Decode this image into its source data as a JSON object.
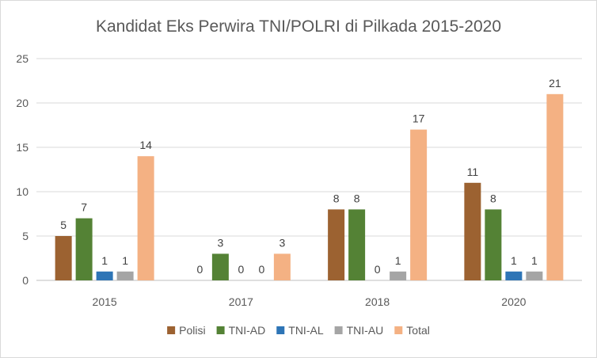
{
  "chart_data": {
    "type": "bar",
    "title": "Kandidat Eks Perwira TNI/POLRI di Pilkada 2015-2020",
    "xlabel": "",
    "ylabel": "",
    "ylim": [
      0,
      25
    ],
    "yticks": [
      0,
      5,
      10,
      15,
      20,
      25
    ],
    "categories": [
      "2015",
      "2017",
      "2018",
      "2020"
    ],
    "grid": true,
    "legend_position": "bottom",
    "series": [
      {
        "name": "Polisi",
        "color": "#9c6231",
        "values": [
          5,
          0,
          8,
          11
        ]
      },
      {
        "name": "TNI-AD",
        "color": "#548235",
        "values": [
          7,
          3,
          8,
          8
        ]
      },
      {
        "name": "TNI-AL",
        "color": "#2e75b6",
        "values": [
          1,
          0,
          0,
          1
        ]
      },
      {
        "name": "TNI-AU",
        "color": "#a5a5a5",
        "values": [
          1,
          0,
          1,
          1
        ]
      },
      {
        "name": "Total",
        "color": "#f4b183",
        "values": [
          14,
          3,
          17,
          21
        ]
      }
    ],
    "data_labels": [
      [
        "5",
        "7",
        "1",
        "1",
        "14"
      ],
      [
        "0",
        "3",
        "0",
        "0",
        "3"
      ],
      [
        "8",
        "8",
        "0",
        "1",
        "17"
      ],
      [
        "11",
        "8",
        "1",
        "1",
        "21"
      ]
    ]
  }
}
